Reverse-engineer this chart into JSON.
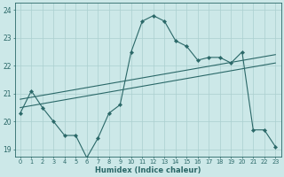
{
  "xlabel": "Humidex (Indice chaleur)",
  "xlim": [
    -0.5,
    23.5
  ],
  "ylim": [
    18.75,
    24.25
  ],
  "yticks": [
    19,
    20,
    21,
    22,
    23,
    24
  ],
  "xticks": [
    0,
    1,
    2,
    3,
    4,
    5,
    6,
    7,
    8,
    9,
    10,
    11,
    12,
    13,
    14,
    15,
    16,
    17,
    18,
    19,
    20,
    21,
    22,
    23
  ],
  "bg_color": "#cce8e8",
  "line_color": "#2a6868",
  "grid_color": "#aacfcf",
  "line1_x": [
    0,
    1,
    2,
    3,
    4,
    5,
    6,
    7,
    8,
    9,
    10,
    11,
    12,
    13,
    14,
    15,
    16,
    17,
    18,
    19,
    20,
    21,
    22,
    23
  ],
  "line1_y": [
    20.3,
    21.1,
    20.5,
    20.0,
    19.5,
    19.5,
    18.7,
    19.4,
    20.3,
    20.6,
    22.5,
    23.6,
    23.8,
    23.6,
    22.9,
    22.7,
    22.2,
    22.3,
    22.3,
    22.1,
    22.5,
    19.7,
    19.7,
    19.1
  ],
  "line2_x": [
    0,
    23
  ],
  "line2_y": [
    20.5,
    22.1
  ],
  "line3_x": [
    0,
    23
  ],
  "line3_y": [
    20.8,
    22.4
  ],
  "figsize": [
    3.2,
    2.0
  ],
  "dpi": 100
}
